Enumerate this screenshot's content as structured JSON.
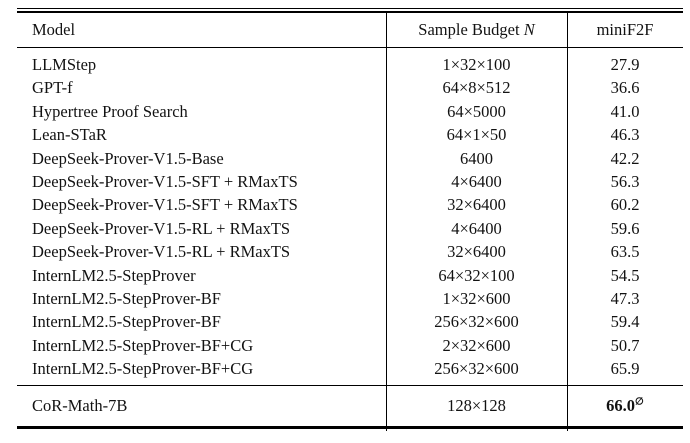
{
  "table": {
    "header": {
      "model": "Model",
      "budget_label": "Sample Budget ",
      "budget_var": "N",
      "metric": "miniF2F"
    },
    "rows": [
      {
        "model": "LLMStep",
        "budget": "1×32×100",
        "score": "27.9"
      },
      {
        "model": "GPT-f",
        "budget": "64×8×512",
        "score": "36.6"
      },
      {
        "model": "Hypertree Proof Search",
        "budget": "64×5000",
        "score": "41.0"
      },
      {
        "model": "Lean-STaR",
        "budget": "64×1×50",
        "score": "46.3"
      },
      {
        "model": "DeepSeek-Prover-V1.5-Base",
        "budget": "6400",
        "score": "42.2"
      },
      {
        "model": "DeepSeek-Prover-V1.5-SFT + RMaxTS",
        "budget": "4×6400",
        "score": "56.3"
      },
      {
        "model": "DeepSeek-Prover-V1.5-SFT + RMaxTS",
        "budget": "32×6400",
        "score": "60.2"
      },
      {
        "model": "DeepSeek-Prover-V1.5-RL + RMaxTS",
        "budget": "4×6400",
        "score": "59.6"
      },
      {
        "model": "DeepSeek-Prover-V1.5-RL + RMaxTS",
        "budget": "32×6400",
        "score": "63.5"
      },
      {
        "model": "InternLM2.5-StepProver",
        "budget": "64×32×100",
        "score": "54.5"
      },
      {
        "model": "InternLM2.5-StepProver-BF",
        "budget": "1×32×600",
        "score": "47.3"
      },
      {
        "model": "InternLM2.5-StepProver-BF",
        "budget": "256×32×600",
        "score": "59.4"
      },
      {
        "model": "InternLM2.5-StepProver-BF+CG",
        "budget": "2×32×600",
        "score": "50.7"
      },
      {
        "model": "InternLM2.5-StepProver-BF+CG",
        "budget": "256×32×600",
        "score": "65.9"
      }
    ],
    "footer": {
      "model": "CoR-Math-7B",
      "budget": "128×128",
      "score": "66.0",
      "score_marker": "∅"
    }
  },
  "colors": {
    "text": "#121212",
    "rule": "#000000",
    "background": "#ffffff"
  }
}
